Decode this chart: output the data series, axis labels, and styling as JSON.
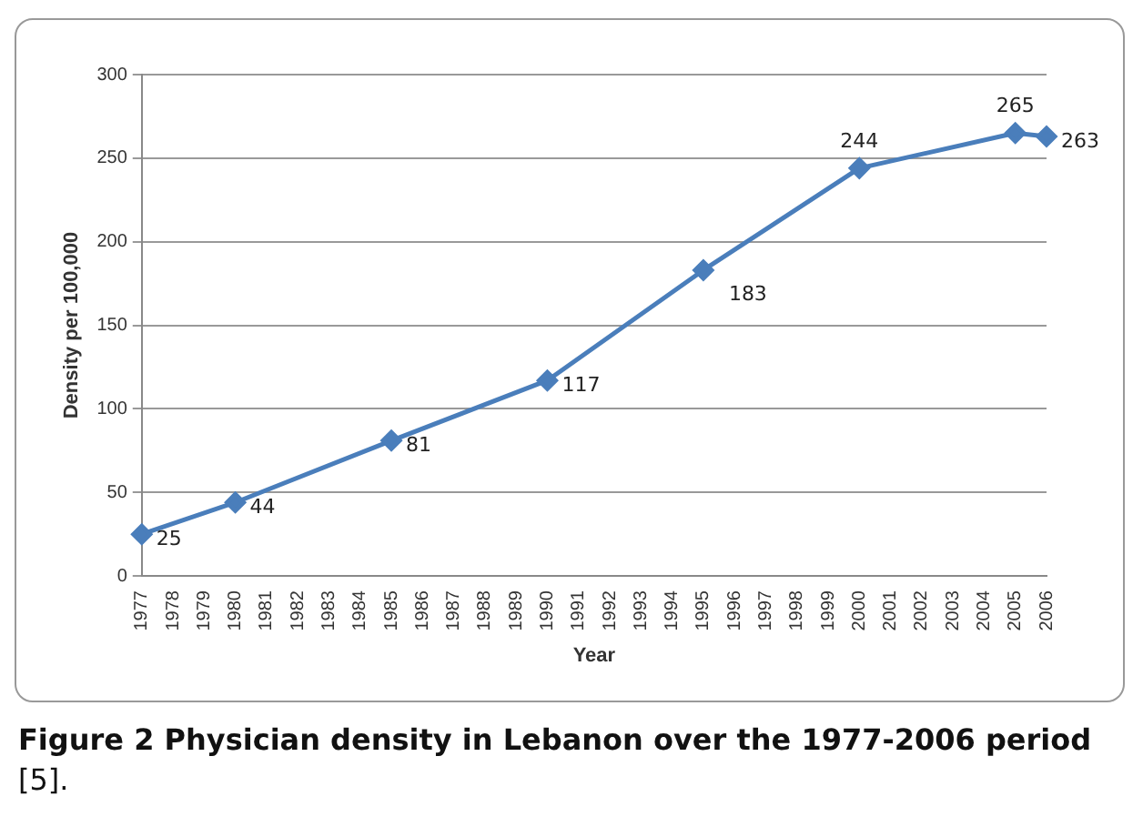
{
  "chart_data": {
    "type": "line",
    "xlabel": "Year",
    "ylabel": "Density per 100,000",
    "categories": [
      "1977",
      "1978",
      "1979",
      "1980",
      "1981",
      "1982",
      "1983",
      "1984",
      "1985",
      "1986",
      "1987",
      "1988",
      "1989",
      "1990",
      "1991",
      "1992",
      "1993",
      "1994",
      "1995",
      "1996",
      "1997",
      "1998",
      "1999",
      "2000",
      "2001",
      "2002",
      "2003",
      "2004",
      "2005",
      "2006"
    ],
    "series": [
      {
        "color": "#4a7ebb",
        "values": [
          25,
          null,
          null,
          44,
          null,
          null,
          null,
          null,
          81,
          null,
          null,
          null,
          null,
          117,
          null,
          null,
          null,
          null,
          183,
          null,
          null,
          null,
          null,
          244,
          null,
          null,
          null,
          null,
          265,
          263
        ]
      }
    ],
    "ylim": [
      0,
      300
    ],
    "yticks": [
      0,
      50,
      100,
      150,
      200,
      250,
      300
    ],
    "grid": "y",
    "legend": false,
    "marker": "diamond",
    "line_style": "solid",
    "data_labels": true,
    "annotations": [
      "Figure 2 Physician density in Lebanon over the 1977-2006 period",
      "[5]."
    ]
  }
}
